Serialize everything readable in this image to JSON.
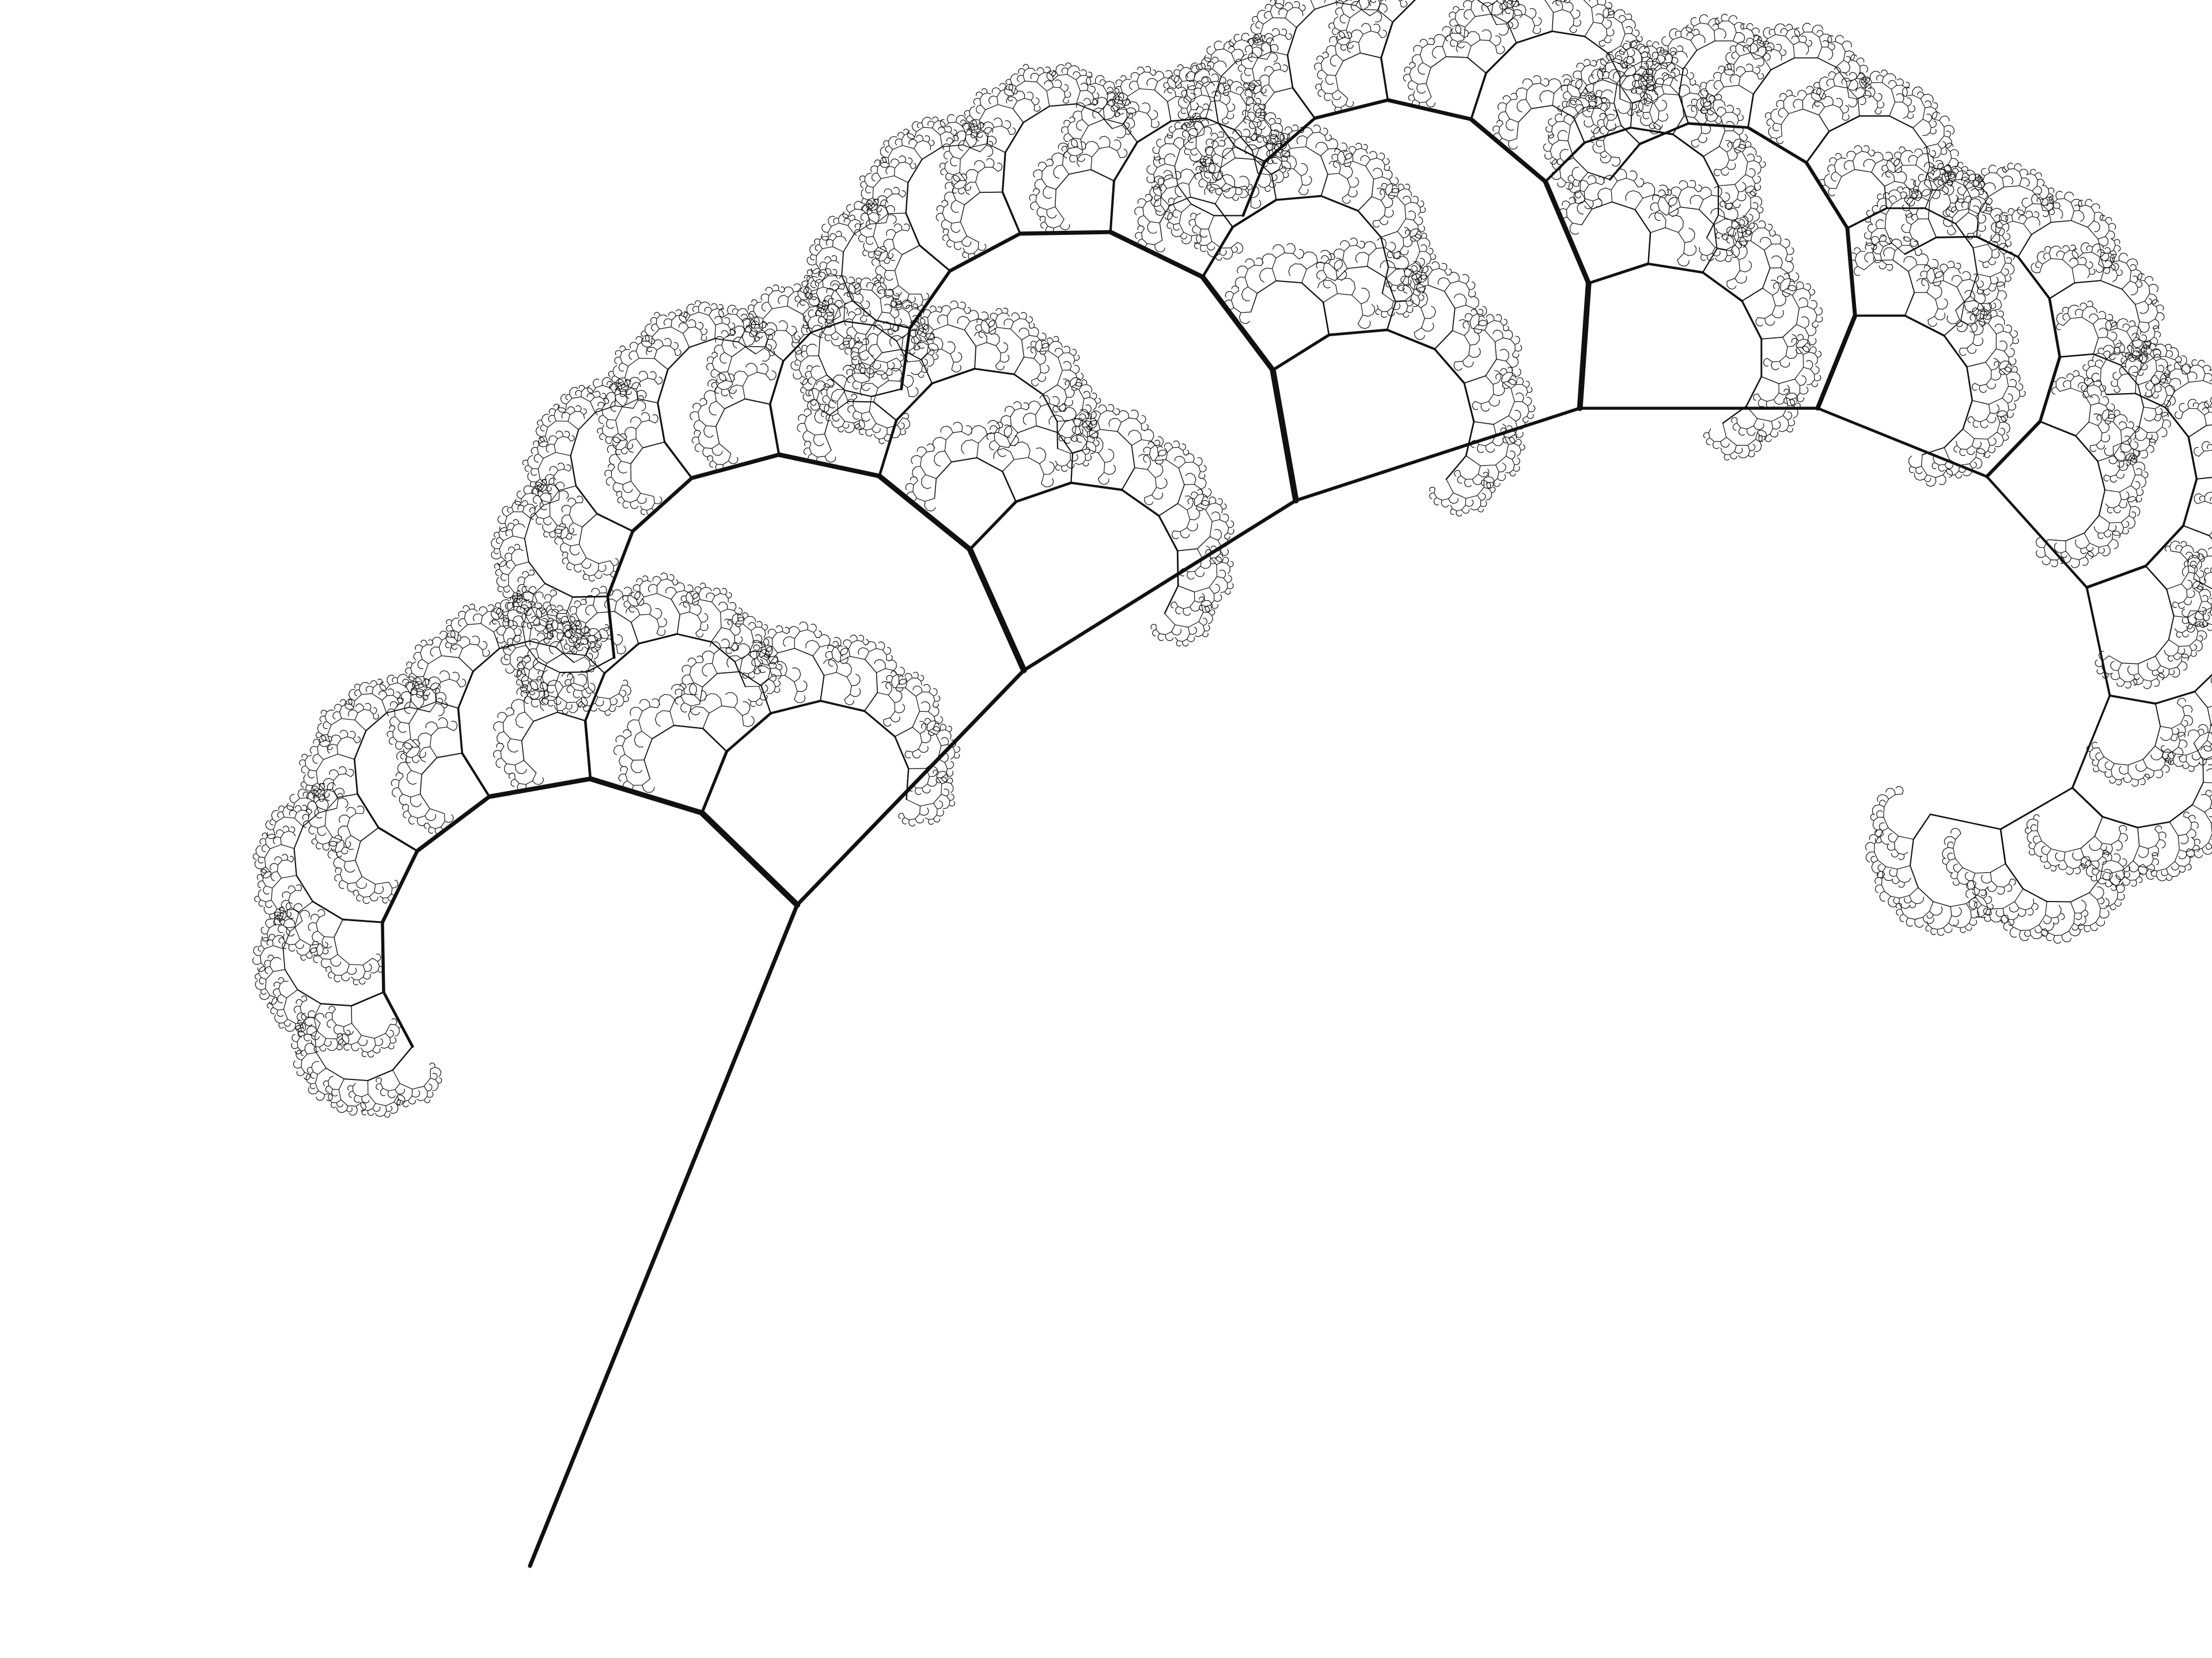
{
  "figure": {
    "subject": "curling-fractal-fern-tree",
    "colors": {
      "background": "#ffffff",
      "ink": "#111111"
    },
    "structure": {
      "main_branch_segments": 11,
      "sub_branch_segments": 7,
      "twig_segments": 5,
      "recursion_depth": 5,
      "main_branch_curl": "clockwise",
      "side_branch_curl": "counter-clockwise"
    }
  }
}
